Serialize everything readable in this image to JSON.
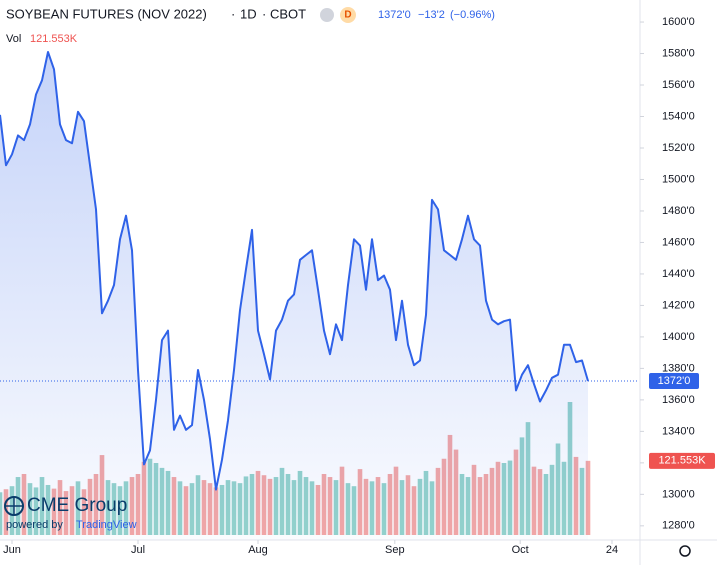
{
  "chart_data": {
    "type": "line",
    "title": "SOYBEAN FUTURES (NOV 2022)",
    "interval": "1D",
    "exchange": "CBOT",
    "badge": "D",
    "last_label": "1372'0",
    "change_label": "−13'2",
    "change_pct_label": "(−0.96%)",
    "color": "#2f62e8",
    "values": [
      1541,
      1509,
      1516,
      1528,
      1525,
      1535,
      1554,
      1563,
      1581,
      1570,
      1535,
      1525,
      1523,
      1543,
      1537,
      1509,
      1481,
      1415,
      1423,
      1433,
      1462,
      1477,
      1455,
      1379,
      1319,
      1328,
      1360,
      1398,
      1404,
      1341,
      1350,
      1341,
      1344,
      1379,
      1360,
      1335,
      1303,
      1322,
      1347,
      1379,
      1417,
      1443,
      1468,
      1404,
      1389,
      1373,
      1404,
      1411,
      1423,
      1427,
      1449,
      1452,
      1455,
      1430,
      1404,
      1389,
      1408,
      1398,
      1433,
      1462,
      1458,
      1430,
      1462,
      1436,
      1439,
      1430,
      1398,
      1423,
      1395,
      1382,
      1385,
      1414,
      1487,
      1481,
      1455,
      1452,
      1449,
      1462,
      1477,
      1462,
      1458,
      1423,
      1411,
      1408,
      1410,
      1411,
      1366,
      1376,
      1382,
      1370,
      1359,
      1366,
      1374,
      1376,
      1395,
      1395,
      1384,
      1385,
      1372
    ],
    "volume": {
      "name": "Vol",
      "last_label": "121.553K",
      "up_color": "#94d3cb",
      "down_color": "#f4a7a5",
      "values": [
        70,
        75,
        80,
        95,
        100,
        85,
        78,
        95,
        82,
        76,
        90,
        72,
        80,
        88,
        75,
        92,
        100,
        131,
        90,
        85,
        80,
        88,
        95,
        100,
        120,
        125,
        118,
        110,
        105,
        95,
        88,
        80,
        85,
        98,
        90,
        85,
        78,
        82,
        90,
        88,
        85,
        96,
        100,
        105,
        98,
        92,
        95,
        110,
        100,
        90,
        105,
        95,
        88,
        82,
        100,
        95,
        90,
        112,
        85,
        80,
        108,
        92,
        88,
        95,
        85,
        100,
        112,
        90,
        98,
        80,
        92,
        105,
        88,
        110,
        125,
        164,
        140,
        100,
        95,
        115,
        95,
        100,
        110,
        120,
        118,
        122,
        140,
        160,
        185,
        112,
        108,
        100,
        115,
        150,
        120,
        218,
        128,
        110,
        121.553
      ]
    },
    "xlim": [
      0,
      106.5
    ],
    "xticks": [
      {
        "value": 2,
        "label": "Jun"
      },
      {
        "value": 23,
        "label": "Jul"
      },
      {
        "value": 43,
        "label": "Aug"
      },
      {
        "value": 65.8,
        "label": "Sep"
      },
      {
        "value": 86.7,
        "label": "Oct"
      },
      {
        "value": 102,
        "label": "24"
      }
    ],
    "ylim": [
      1271,
      1614
    ],
    "yticks": [
      {
        "value": 1280,
        "label": "1280'0"
      },
      {
        "value": 1300,
        "label": "1300'0"
      },
      {
        "value": 1320,
        "label": "1320'0"
      },
      {
        "value": 1340,
        "label": "1340'0"
      },
      {
        "value": 1360,
        "label": "1360'0"
      },
      {
        "value": 1380,
        "label": "1380'0"
      },
      {
        "value": 1400,
        "label": "1400'0"
      },
      {
        "value": 1420,
        "label": "1420'0"
      },
      {
        "value": 1440,
        "label": "1440'0"
      },
      {
        "value": 1460,
        "label": "1460'0"
      },
      {
        "value": 1480,
        "label": "1480'0"
      },
      {
        "value": 1500,
        "label": "1500'0"
      },
      {
        "value": 1520,
        "label": "1520'0"
      },
      {
        "value": 1540,
        "label": "1540'0"
      },
      {
        "value": 1560,
        "label": "1560'0"
      },
      {
        "value": 1580,
        "label": "1580'0"
      },
      {
        "value": 1600,
        "label": "1600'0"
      }
    ],
    "grid": false
  },
  "branding": {
    "logo": "CME Group",
    "powered": "powered by",
    "platform": "TradingView"
  }
}
